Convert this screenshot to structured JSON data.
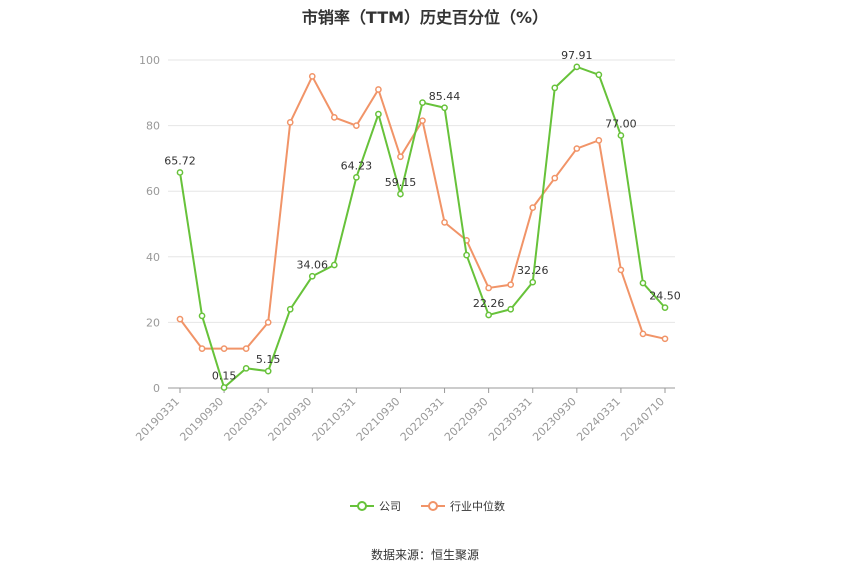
{
  "chart_data": {
    "type": "line",
    "title": "市销率（TTM）历史百分位（%）",
    "ylim": [
      0,
      100
    ],
    "yticks": [
      0,
      20,
      40,
      60,
      80,
      100
    ],
    "x_tick_labels": [
      "20190331",
      "20190930",
      "20200331",
      "20200930",
      "20210331",
      "20210930",
      "20220331",
      "20220930",
      "20230331",
      "20230930",
      "20240331",
      "20240710"
    ],
    "x": [
      "20190331",
      "20190630",
      "20190930",
      "20191231",
      "20200331",
      "20200630",
      "20200930",
      "20201231",
      "20210331",
      "20210630",
      "20210930",
      "20211231",
      "20220331",
      "20220630",
      "20220930",
      "20221231",
      "20230331",
      "20230630",
      "20230930",
      "20231231",
      "20240331",
      "20240630",
      "20240710"
    ],
    "series": [
      {
        "name": "公司",
        "color": "#67c23a",
        "values": [
          65.72,
          22.0,
          0.15,
          6.0,
          5.15,
          24.0,
          34.06,
          37.5,
          64.23,
          83.5,
          59.15,
          87.0,
          85.44,
          40.5,
          22.26,
          24.0,
          32.26,
          91.5,
          97.91,
          95.5,
          77.0,
          32.0,
          24.5
        ],
        "labels": {
          "0": "65.72",
          "2": "0.15",
          "4": "5.15",
          "6": "34.06",
          "8": "64.23",
          "10": "59.15",
          "12": "85.44",
          "14": "22.26",
          "16": "32.26",
          "18": "97.91",
          "20": "77.00",
          "22": "24.50"
        }
      },
      {
        "name": "行业中位数",
        "color": "#f19468",
        "values": [
          21.0,
          12.0,
          12.0,
          12.0,
          20.0,
          81.0,
          95.0,
          82.5,
          80.0,
          91.0,
          70.5,
          81.5,
          50.5,
          45.0,
          30.5,
          31.5,
          55.0,
          64.0,
          73.0,
          75.5,
          36.0,
          16.5,
          15.0
        ],
        "labels": {}
      }
    ],
    "legend_position": "bottom",
    "grid": true
  },
  "source": "数据来源：恒生聚源"
}
